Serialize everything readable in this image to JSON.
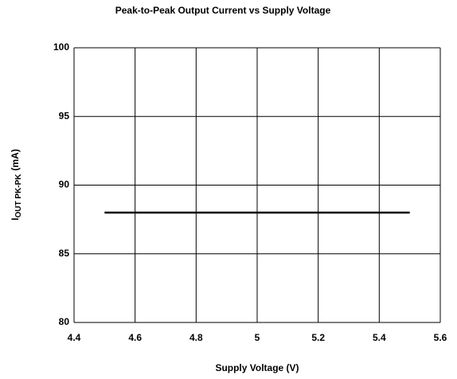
{
  "chart_data": {
    "type": "line",
    "title": "Peak-to-Peak Output Current vs Supply Voltage",
    "xlabel": "Supply Voltage (V)",
    "ylabel": {
      "main": "I",
      "sub": "OUT PK-PK",
      "unit": "(mA)"
    },
    "x": [
      4.5,
      5.5
    ],
    "series": [
      {
        "color": "#000000",
        "values": [
          88,
          88
        ]
      }
    ],
    "xlim": [
      4.4,
      5.6
    ],
    "xticks": [
      4.4,
      4.6,
      4.8,
      5,
      5.2,
      5.4,
      5.6
    ],
    "ylim": [
      80,
      100
    ],
    "yticks": [
      80,
      85,
      90,
      95,
      100
    ],
    "grid": true
  }
}
